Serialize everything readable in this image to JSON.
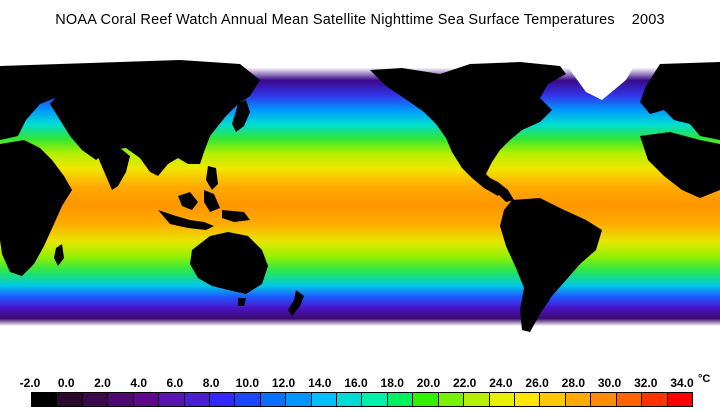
{
  "title": "NOAA Coral Reef Watch Annual Mean Satellite Nighttime Sea Surface Temperatures    2003",
  "legend": {
    "unit": "°C",
    "ticks": [
      "-2.0",
      "0.0",
      "2.0",
      "4.0",
      "6.0",
      "8.0",
      "10.0",
      "12.0",
      "14.0",
      "16.0",
      "18.0",
      "20.0",
      "22.0",
      "24.0",
      "26.0",
      "28.0",
      "30.0",
      "32.0",
      "34.0"
    ],
    "colors": [
      "#000000",
      "#2a0a2a",
      "#3c0a4a",
      "#4a0a6e",
      "#5a0a8a",
      "#5a14b0",
      "#4b1ed2",
      "#3228ff",
      "#1e46ff",
      "#0a6eff",
      "#0096ff",
      "#00beff",
      "#00dcd2",
      "#00f0aa",
      "#00f064",
      "#32f000",
      "#78f000",
      "#b4f000",
      "#e6f000",
      "#ffe600",
      "#ffc800",
      "#ffaa00",
      "#ff8c00",
      "#ff6400",
      "#ff3200",
      "#ff0000"
    ]
  },
  "map": {
    "land_color": "#000000",
    "ice_color": "#ffffff",
    "ocean_gradient": [
      {
        "lat": 90,
        "color": "#ffffff"
      },
      {
        "lat": 75,
        "color": "#ffffff"
      },
      {
        "lat": 68,
        "color": "#3a0a8a"
      },
      {
        "lat": 60,
        "color": "#3232e6"
      },
      {
        "lat": 52,
        "color": "#0096ff"
      },
      {
        "lat": 44,
        "color": "#00dcd2"
      },
      {
        "lat": 36,
        "color": "#32e632"
      },
      {
        "lat": 28,
        "color": "#b4f000"
      },
      {
        "lat": 20,
        "color": "#f0e600"
      },
      {
        "lat": 10,
        "color": "#ffaa00"
      },
      {
        "lat": 0,
        "color": "#ff9600"
      },
      {
        "lat": -10,
        "color": "#ffaa00"
      },
      {
        "lat": -20,
        "color": "#e6e600"
      },
      {
        "lat": -28,
        "color": "#96f000"
      },
      {
        "lat": -36,
        "color": "#28e650"
      },
      {
        "lat": -44,
        "color": "#00c8e6"
      },
      {
        "lat": -50,
        "color": "#1e5aff"
      },
      {
        "lat": -56,
        "color": "#4a14c8"
      },
      {
        "lat": -62,
        "color": "#3c0a6e"
      },
      {
        "lat": -66,
        "color": "#ffffff"
      },
      {
        "lat": -90,
        "color": "#ffffff"
      }
    ]
  }
}
